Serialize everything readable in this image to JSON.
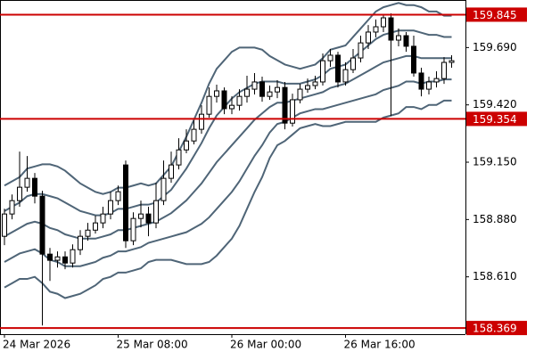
{
  "chart_data": {
    "type": "candlestick",
    "categories": [
      "24 Mar 2026",
      null,
      null,
      null,
      null,
      null,
      null,
      null,
      null,
      null,
      null,
      null,
      null,
      null,
      null,
      "25 Mar 08:00",
      null,
      null,
      null,
      null,
      null,
      null,
      null,
      null,
      null,
      null,
      null,
      null,
      null,
      null,
      "26 Mar 00:00",
      null,
      null,
      null,
      null,
      null,
      null,
      null,
      null,
      null,
      null,
      null,
      null,
      null,
      null,
      "26 Mar 16:00",
      null,
      null,
      null,
      null,
      null,
      null,
      null,
      null,
      null,
      null,
      null,
      null,
      null,
      null
    ],
    "open": [
      158.801,
      158.906,
      158.969,
      159.032,
      159.074,
      158.99,
      158.717,
      158.688,
      158.704,
      158.675,
      158.738,
      158.801,
      158.83,
      158.864,
      158.906,
      158.969,
      159.137,
      158.78,
      158.885,
      158.906,
      158.864,
      158.969,
      159.074,
      159.137,
      159.208,
      159.25,
      159.305,
      159.376,
      159.46,
      159.486,
      159.402,
      159.418,
      159.46,
      159.494,
      159.528,
      159.46,
      159.481,
      159.502,
      159.334,
      159.444,
      159.494,
      159.511,
      159.528,
      159.628,
      159.654,
      159.528,
      159.586,
      159.641,
      159.712,
      159.763,
      159.788,
      159.83,
      159.725,
      159.746,
      159.696,
      159.57,
      159.494,
      159.528,
      159.544,
      159.62
    ],
    "high": [
      158.931,
      158.998,
      159.2,
      159.179,
      159.099,
      159.015,
      158.746,
      158.73,
      158.73,
      158.763,
      158.83,
      158.864,
      158.898,
      158.94,
      159.011,
      159.04,
      159.158,
      158.914,
      158.969,
      158.94,
      159.053,
      159.158,
      159.2,
      159.263,
      159.305,
      159.347,
      159.418,
      159.502,
      159.515,
      159.502,
      159.46,
      159.494,
      159.557,
      159.57,
      159.553,
      159.511,
      159.536,
      159.528,
      159.473,
      159.519,
      159.544,
      159.557,
      159.662,
      159.683,
      159.67,
      159.62,
      159.683,
      159.746,
      159.796,
      159.822,
      159.843,
      159.851,
      159.78,
      159.763,
      159.746,
      159.595,
      159.553,
      159.578,
      159.645,
      159.654
    ],
    "low": [
      158.759,
      158.881,
      158.94,
      159.011,
      158.956,
      158.381,
      158.591,
      158.654,
      158.646,
      158.654,
      158.713,
      158.78,
      158.814,
      158.839,
      158.881,
      158.948,
      158.746,
      158.759,
      158.843,
      158.801,
      158.839,
      158.948,
      159.053,
      159.116,
      159.192,
      159.234,
      159.284,
      159.36,
      159.431,
      159.376,
      159.376,
      159.393,
      159.431,
      159.469,
      159.435,
      159.444,
      159.452,
      159.305,
      159.318,
      159.427,
      159.477,
      159.494,
      159.511,
      159.599,
      159.502,
      159.511,
      159.57,
      159.62,
      159.683,
      159.738,
      159.763,
      159.368,
      159.696,
      159.67,
      159.553,
      159.46,
      159.469,
      159.502,
      159.519,
      159.595
    ],
    "close": [
      158.906,
      158.969,
      159.032,
      159.074,
      158.99,
      158.717,
      158.688,
      158.704,
      158.675,
      158.738,
      158.801,
      158.83,
      158.864,
      158.906,
      158.969,
      159.011,
      158.78,
      158.885,
      158.906,
      158.864,
      158.969,
      159.074,
      159.137,
      159.208,
      159.25,
      159.305,
      159.376,
      159.46,
      159.486,
      159.402,
      159.418,
      159.46,
      159.494,
      159.528,
      159.46,
      159.481,
      159.502,
      159.334,
      159.444,
      159.494,
      159.511,
      159.528,
      159.628,
      159.654,
      159.528,
      159.586,
      159.641,
      159.712,
      159.763,
      159.788,
      159.83,
      159.725,
      159.746,
      159.696,
      159.57,
      159.494,
      159.528,
      159.544,
      159.62,
      159.628
    ],
    "up_color": "#ffffff",
    "down_color": "#000000",
    "series": [
      {
        "color": "#4f6577",
        "values": [
          159.04,
          159.06,
          159.08,
          159.12,
          159.13,
          159.14,
          159.14,
          159.13,
          159.11,
          159.08,
          159.05,
          159.03,
          159.01,
          159.0,
          159.01,
          159.03,
          159.03,
          159.04,
          159.05,
          159.04,
          159.05,
          159.09,
          159.13,
          159.2,
          159.27,
          159.35,
          159.43,
          159.52,
          159.59,
          159.63,
          159.67,
          159.69,
          159.69,
          159.69,
          159.68,
          159.65,
          159.63,
          159.61,
          159.6,
          159.59,
          159.6,
          159.61,
          159.64,
          159.68,
          159.69,
          159.7,
          159.74,
          159.78,
          159.82,
          159.86,
          159.88,
          159.89,
          159.9,
          159.89,
          159.89,
          159.88,
          159.86,
          159.86,
          159.84,
          159.84
        ]
      },
      {
        "color": "#4f6577",
        "values": [
          158.92,
          158.94,
          158.96,
          158.99,
          159.0,
          159.0,
          158.99,
          158.98,
          158.96,
          158.94,
          158.92,
          158.91,
          158.9,
          158.9,
          158.91,
          158.93,
          158.93,
          158.94,
          158.95,
          158.95,
          158.96,
          158.99,
          159.02,
          159.07,
          159.12,
          159.18,
          159.24,
          159.31,
          159.37,
          159.41,
          159.45,
          159.48,
          159.5,
          159.52,
          159.53,
          159.53,
          159.53,
          159.52,
          159.52,
          159.52,
          159.53,
          159.54,
          159.56,
          159.59,
          159.6,
          159.61,
          159.64,
          159.67,
          159.7,
          159.73,
          159.75,
          159.76,
          159.77,
          159.77,
          159.77,
          159.76,
          159.75,
          159.75,
          159.74,
          159.74
        ]
      },
      {
        "color": "#4f6577",
        "values": [
          158.8,
          158.82,
          158.84,
          158.86,
          158.87,
          158.86,
          158.84,
          158.83,
          158.81,
          158.8,
          158.79,
          158.79,
          158.79,
          158.8,
          158.81,
          158.83,
          158.83,
          158.84,
          158.85,
          158.86,
          158.87,
          158.89,
          158.91,
          158.94,
          158.97,
          159.01,
          159.05,
          159.1,
          159.15,
          159.19,
          159.23,
          159.27,
          159.31,
          159.35,
          159.38,
          159.41,
          159.43,
          159.43,
          159.44,
          159.45,
          159.46,
          159.47,
          159.48,
          159.5,
          159.51,
          159.52,
          159.54,
          159.56,
          159.58,
          159.6,
          159.62,
          159.63,
          159.64,
          159.65,
          159.65,
          159.64,
          159.64,
          159.64,
          159.64,
          159.64
        ]
      },
      {
        "color": "#4f6577",
        "values": [
          158.68,
          158.7,
          158.72,
          158.73,
          158.74,
          158.72,
          158.69,
          158.68,
          158.66,
          158.66,
          158.66,
          158.67,
          158.68,
          158.7,
          158.71,
          158.73,
          158.73,
          158.74,
          158.75,
          158.77,
          158.78,
          158.79,
          158.8,
          158.81,
          158.82,
          158.84,
          158.86,
          158.89,
          158.93,
          158.97,
          159.01,
          159.06,
          159.12,
          159.18,
          159.23,
          159.29,
          159.33,
          159.34,
          159.36,
          159.38,
          159.39,
          159.4,
          159.4,
          159.41,
          159.42,
          159.43,
          159.44,
          159.45,
          159.46,
          159.47,
          159.49,
          159.5,
          159.51,
          159.53,
          159.53,
          159.52,
          159.53,
          159.53,
          159.54,
          159.54
        ]
      },
      {
        "color": "#4f6577",
        "values": [
          158.56,
          158.58,
          158.6,
          158.6,
          158.61,
          158.58,
          158.54,
          158.53,
          158.51,
          158.52,
          158.53,
          158.55,
          158.57,
          158.6,
          158.61,
          158.63,
          158.63,
          158.64,
          158.65,
          158.68,
          158.69,
          158.69,
          158.69,
          158.68,
          158.67,
          158.67,
          158.67,
          158.68,
          158.71,
          158.75,
          158.79,
          158.85,
          158.93,
          159.01,
          159.08,
          159.17,
          159.23,
          159.25,
          159.28,
          159.31,
          159.32,
          159.33,
          159.32,
          159.32,
          159.33,
          159.34,
          159.34,
          159.34,
          159.34,
          159.34,
          159.36,
          159.37,
          159.38,
          159.41,
          159.41,
          159.4,
          159.42,
          159.42,
          159.44,
          159.44
        ]
      }
    ],
    "hlines": [
      159.845,
      159.354,
      158.369
    ],
    "hline_color": "#cc0000",
    "ylim": [
      158.34,
      159.914
    ],
    "yticks": [
      {
        "value": 158.61,
        "label": "158.610"
      },
      {
        "value": 158.88,
        "label": "158.880"
      },
      {
        "value": 159.15,
        "label": "159.150"
      },
      {
        "value": 159.42,
        "label": "159.420"
      },
      {
        "value": 159.69,
        "label": "159.690"
      }
    ],
    "grid": false
  }
}
